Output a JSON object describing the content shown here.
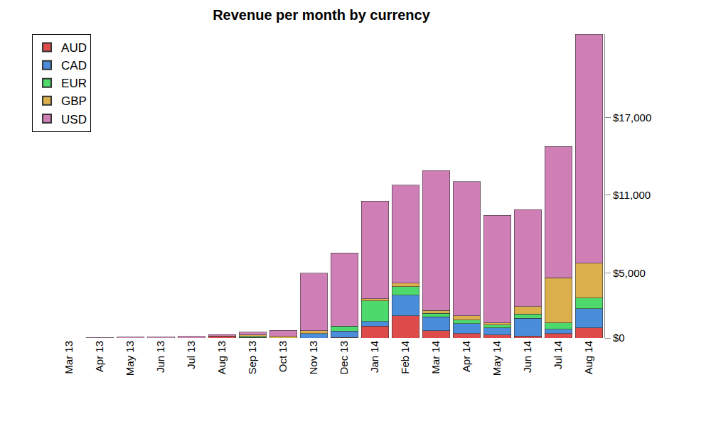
{
  "chart_data": {
    "type": "bar",
    "title": "Revenue per month by currency",
    "stacked": true,
    "grid": false,
    "legend": "top left",
    "categories": [
      "Mar 13",
      "Apr 13",
      "May 13",
      "Jun 13",
      "Jul 13",
      "Aug 13",
      "Sep 13",
      "Oct 13",
      "Nov 13",
      "Dec 13",
      "Jan 14",
      "Feb 14",
      "Mar 14",
      "Apr 14",
      "May 14",
      "Jun 14",
      "Jul 14",
      "Aug 14"
    ],
    "ylim": [
      0,
      23420
    ],
    "yticks": [
      {
        "value": 0,
        "label": "$0"
      },
      {
        "value": 5000,
        "label": "$5,000"
      },
      {
        "value": 11000,
        "label": "$11,000"
      },
      {
        "value": 17000,
        "label": "$17,000"
      }
    ],
    "series": [
      {
        "name": "AUD",
        "color": "#dd4b4b",
        "values": [
          0,
          0,
          0,
          0,
          0,
          160,
          50,
          0,
          0,
          50,
          930,
          1700,
          550,
          330,
          220,
          160,
          330,
          770
        ]
      },
      {
        "name": "CAD",
        "color": "#4a8ddb",
        "values": [
          0,
          0,
          0,
          0,
          0,
          0,
          0,
          0,
          330,
          490,
          330,
          1590,
          1090,
          770,
          550,
          1370,
          330,
          1480
        ]
      },
      {
        "name": "EUR",
        "color": "#4ed96c",
        "values": [
          0,
          0,
          0,
          0,
          0,
          0,
          60,
          0,
          0,
          380,
          1590,
          660,
          270,
          270,
          220,
          330,
          490,
          820
        ]
      },
      {
        "name": "GBP",
        "color": "#dbb04c",
        "values": [
          0,
          0,
          0,
          0,
          0,
          0,
          110,
          110,
          220,
          0,
          160,
          270,
          220,
          330,
          160,
          550,
          3500,
          2680
        ]
      },
      {
        "name": "USD",
        "color": "#cf7fb6",
        "values": [
          0,
          50,
          60,
          60,
          110,
          110,
          220,
          490,
          4430,
          5630,
          7550,
          7550,
          10780,
          10340,
          8310,
          7490,
          10120,
          17670
        ]
      }
    ]
  }
}
